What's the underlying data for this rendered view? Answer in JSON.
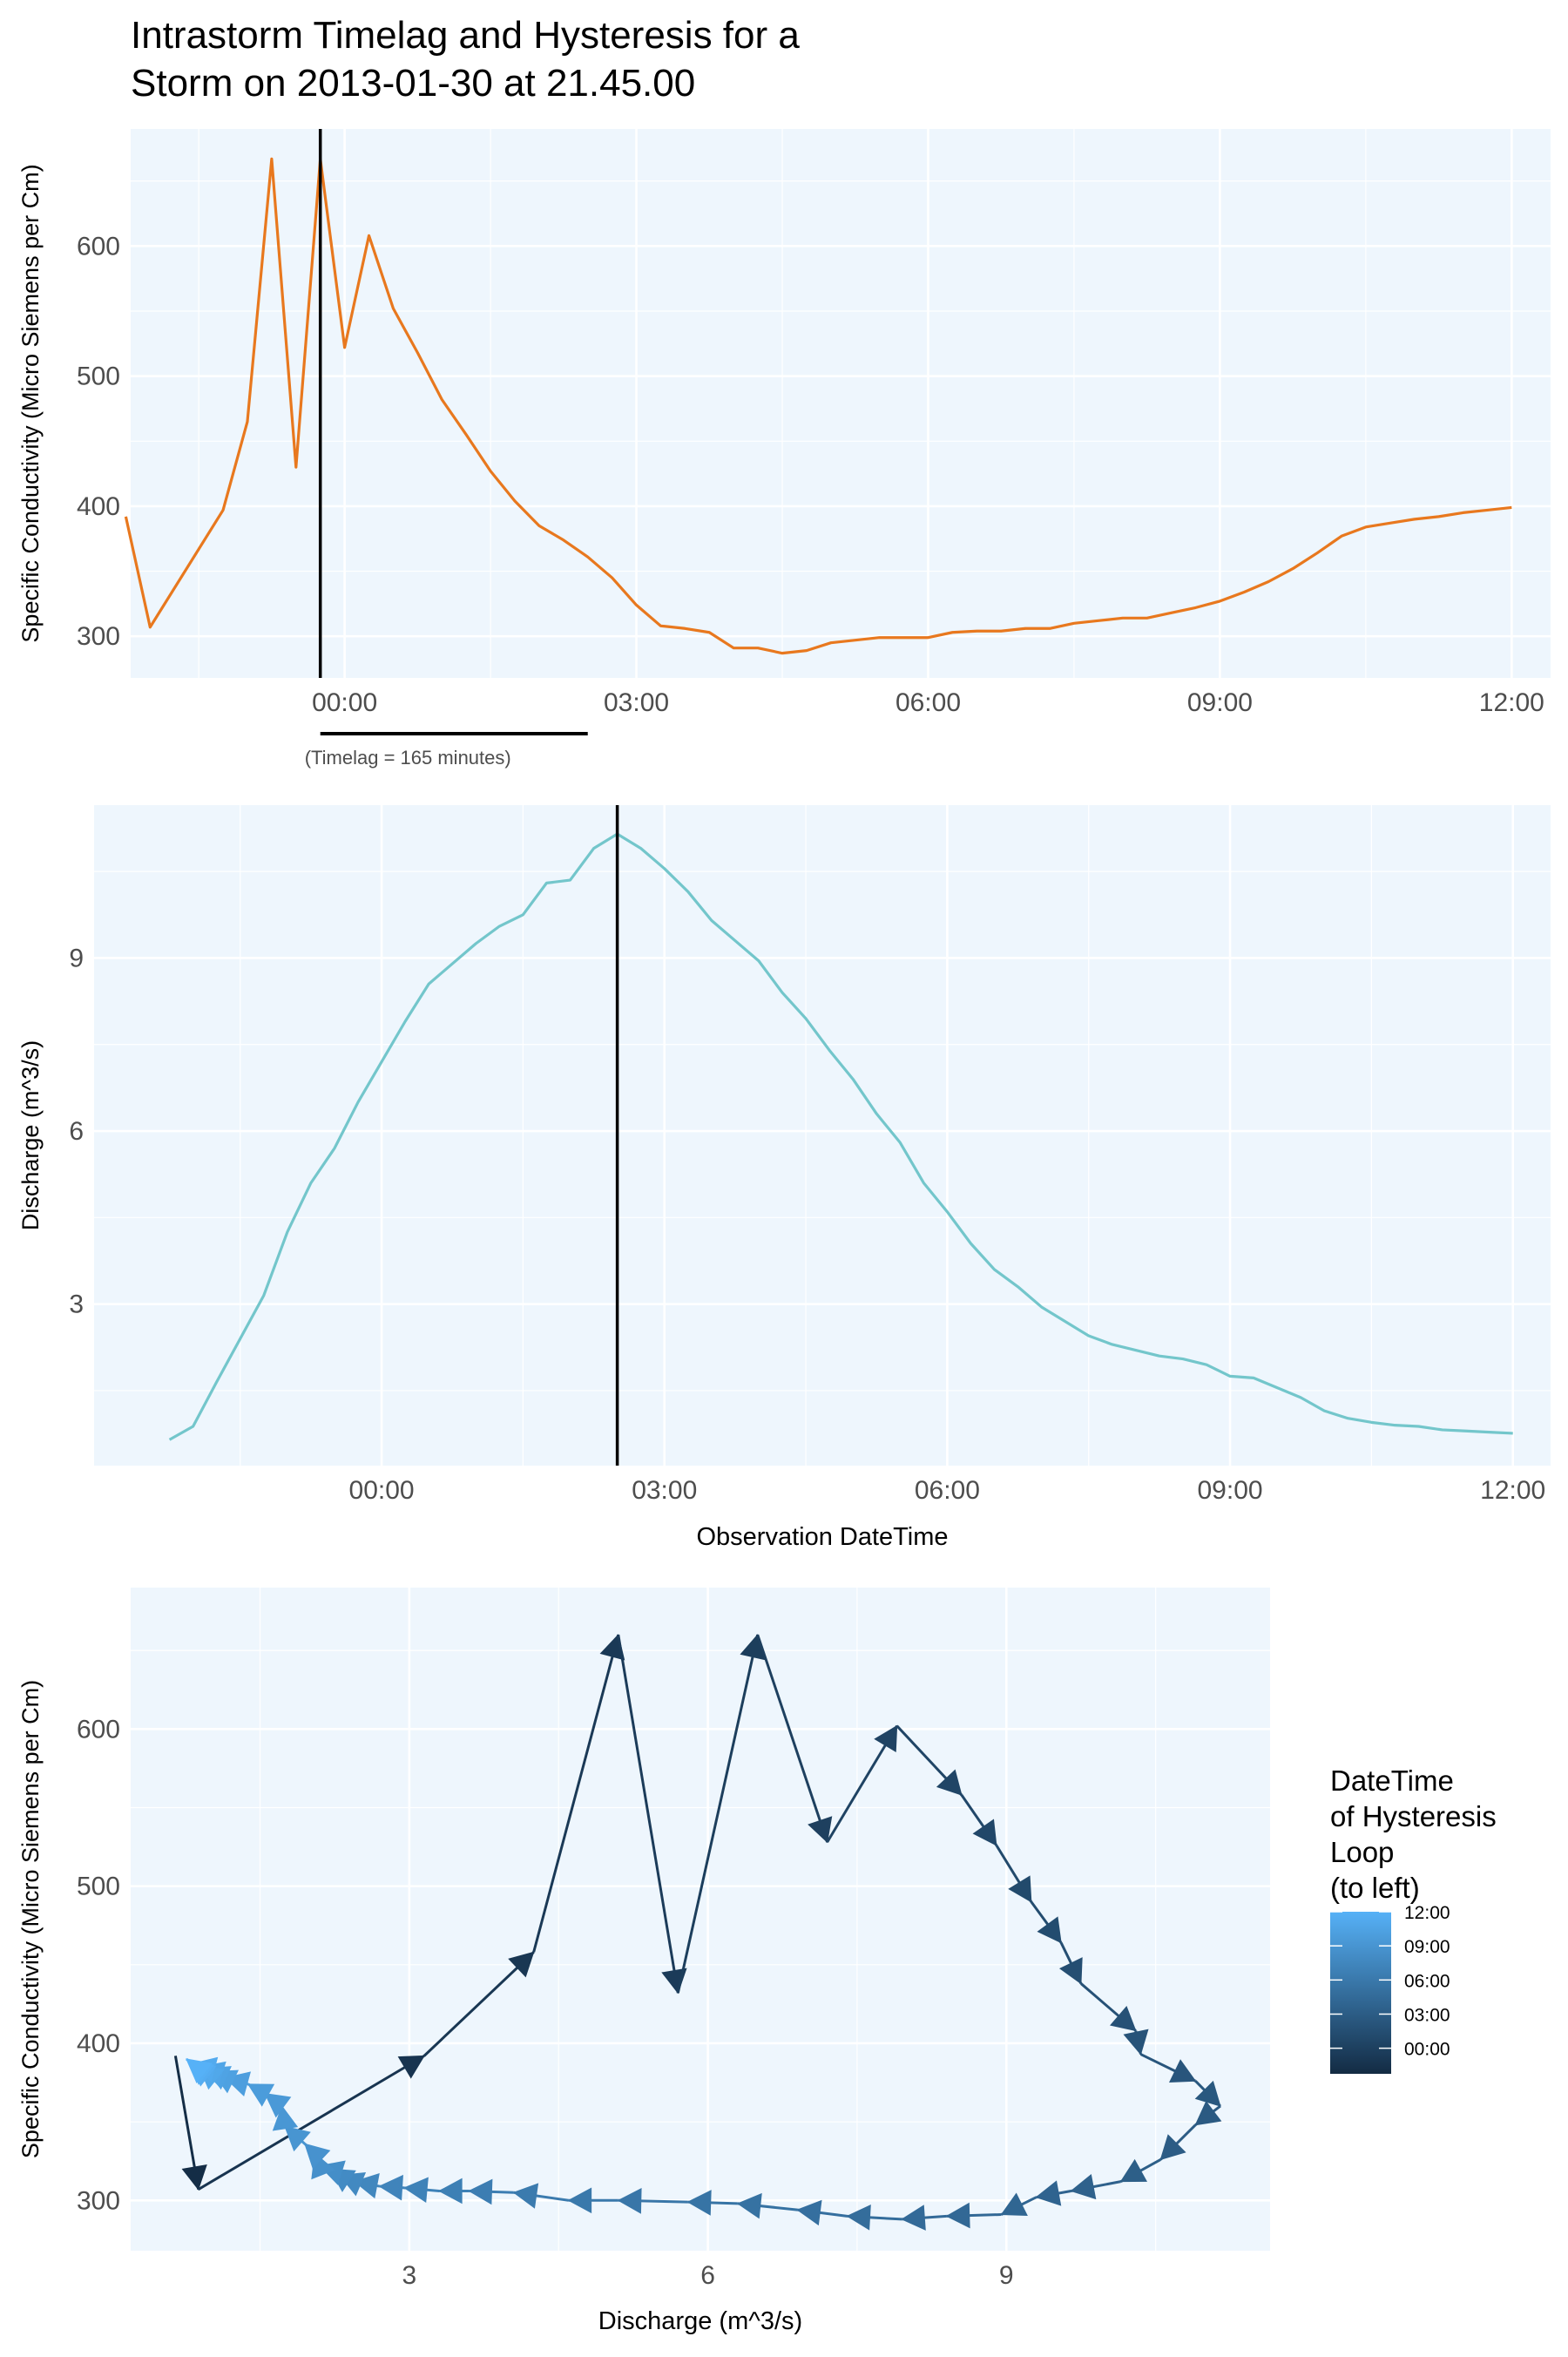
{
  "page": {
    "title_line1": "Intrastorm Timelag and Hysteresis for a",
    "title_line2": "Storm on 2013-01-30 at 21.45.00"
  },
  "colors": {
    "panel_bg": "#eef6fd",
    "grid": "#ffffff",
    "conductivity_line": "#e8781e",
    "discharge_line": "#73c6cb",
    "marker_line": "#000000",
    "gradient_low": "#132b43",
    "gradient_high": "#56b1f7"
  },
  "chart_data": [
    {
      "type": "line",
      "ylabel": "Specific Conductivity (Micro Siemens per Cm)",
      "xlabel": "",
      "x_unit": "hours relative to 2013-01-31 00:00",
      "xlim": [
        -2.2,
        12.4
      ],
      "ylim": [
        268,
        690
      ],
      "x_ticks": [
        0,
        3,
        6,
        9,
        12
      ],
      "x_tick_labels": [
        "00:00",
        "03:00",
        "06:00",
        "09:00",
        "12:00"
      ],
      "y_ticks": [
        300,
        400,
        500,
        600
      ],
      "y_tick_labels": [
        "300",
        "400",
        "500",
        "600"
      ],
      "vline_x": -0.25,
      "timelag_bar": [
        -0.25,
        2.5
      ],
      "timelag_label": "(Timelag = 165 minutes)",
      "series": [
        {
          "x": [
            -2.25,
            -2.0,
            -1.25,
            -1.0,
            -0.75,
            -0.5,
            -0.25,
            0.0,
            0.25,
            0.5,
            0.75,
            1.0,
            1.25,
            1.5,
            1.75,
            2.0,
            2.25,
            2.5,
            2.75,
            3.0,
            3.25,
            3.5,
            3.75,
            4.0,
            4.25,
            4.5,
            4.75,
            5.0,
            5.25,
            5.5,
            5.75,
            6.0,
            6.25,
            6.5,
            6.75,
            7.0,
            7.25,
            7.5,
            7.75,
            8.0,
            8.25,
            8.5,
            8.75,
            9.0,
            9.25,
            9.5,
            9.75,
            10.0,
            10.25,
            10.5,
            10.75,
            11.0,
            11.25,
            11.5,
            11.75,
            12.0
          ],
          "values": [
            392,
            307,
            397,
            465,
            667,
            430,
            667,
            522,
            608,
            552,
            518,
            482,
            455,
            427,
            404,
            385,
            374,
            361,
            345,
            324,
            308,
            306,
            303,
            291,
            291,
            287,
            289,
            295,
            297,
            299,
            299,
            299,
            303,
            304,
            304,
            306,
            306,
            310,
            312,
            314,
            314,
            318,
            322,
            327,
            334,
            342,
            352,
            364,
            377,
            384,
            387,
            390,
            392,
            395,
            397,
            399
          ]
        }
      ]
    },
    {
      "type": "line",
      "ylabel": "Discharge (m^3/s)",
      "xlabel": "Observation DateTime",
      "x_unit": "hours relative to 2013-01-31 00:00",
      "xlim": [
        -3.05,
        12.4
      ],
      "ylim": [
        0.2,
        11.65
      ],
      "x_ticks": [
        0,
        3,
        6,
        9,
        12
      ],
      "x_tick_labels": [
        "00:00",
        "03:00",
        "06:00",
        "09:00",
        "12:00"
      ],
      "y_ticks": [
        3,
        6,
        9
      ],
      "y_tick_labels": [
        "3",
        "6",
        "9"
      ],
      "vline_x": 2.5,
      "series": [
        {
          "x": [
            -2.25,
            -2.0,
            -1.75,
            -1.5,
            -1.25,
            -1.0,
            -0.75,
            -0.5,
            -0.25,
            0.0,
            0.25,
            0.5,
            0.75,
            1.0,
            1.25,
            1.5,
            1.75,
            2.0,
            2.25,
            2.5,
            2.75,
            3.0,
            3.25,
            3.5,
            3.75,
            4.0,
            4.25,
            4.5,
            4.75,
            5.0,
            5.25,
            5.5,
            5.75,
            6.0,
            6.25,
            6.5,
            6.75,
            7.0,
            7.25,
            7.5,
            7.75,
            8.0,
            8.25,
            8.5,
            8.75,
            9.0,
            9.25,
            9.5,
            9.75,
            10.0,
            10.25,
            10.5,
            10.75,
            11.0,
            11.25,
            11.5,
            11.75,
            12.0
          ],
          "values": [
            0.65,
            0.88,
            1.65,
            2.4,
            3.15,
            4.25,
            5.1,
            5.7,
            6.5,
            7.2,
            7.9,
            8.55,
            8.9,
            9.25,
            9.55,
            9.75,
            10.3,
            10.35,
            10.9,
            11.15,
            10.9,
            10.55,
            10.15,
            9.65,
            9.3,
            8.95,
            8.4,
            7.95,
            7.4,
            6.9,
            6.3,
            5.8,
            5.1,
            4.6,
            4.05,
            3.6,
            3.3,
            2.95,
            2.7,
            2.45,
            2.3,
            2.2,
            2.1,
            2.05,
            1.95,
            1.75,
            1.72,
            1.55,
            1.38,
            1.15,
            1.02,
            0.95,
            0.9,
            0.88,
            0.82,
            0.8,
            0.78,
            0.76
          ]
        }
      ]
    },
    {
      "type": "scatter",
      "ylabel": "Specific Conductivity (Micro Siemens per Cm)",
      "xlabel": "Discharge (m^3/s)",
      "xlim": [
        0.2,
        11.65
      ],
      "ylim": [
        268,
        690
      ],
      "x_ticks": [
        3,
        6,
        9
      ],
      "x_tick_labels": [
        "3",
        "6",
        "9"
      ],
      "y_ticks": [
        300,
        400,
        500,
        600
      ],
      "y_tick_labels": [
        "300",
        "400",
        "500",
        "600"
      ],
      "legend": {
        "title_lines": [
          "DateTime",
          "of Hysteresis",
          "Loop",
          "(to left)"
        ],
        "placement": "right",
        "tick_labels": [
          "12:00",
          "09:00",
          "06:00",
          "03:00",
          "00:00"
        ],
        "tick_hours": [
          12,
          9,
          6,
          3,
          0
        ],
        "range_hours": [
          -2.25,
          12.0
        ]
      },
      "series": [
        {
          "description_source": "path of discharge (x) vs conductivity (y) over time",
          "hours": [
            -2.25,
            -2.0,
            -1.25,
            -1.0,
            -0.75,
            -0.5,
            -0.25,
            0.0,
            0.25,
            0.5,
            0.75,
            1.0,
            1.25,
            1.5,
            1.75,
            2.0,
            2.25,
            2.5,
            2.75,
            3.0,
            3.25,
            3.5,
            3.75,
            4.0,
            4.25,
            4.5,
            4.75,
            5.0,
            5.25,
            5.5,
            5.75,
            6.0,
            6.25,
            6.5,
            6.75,
            7.0,
            7.25,
            7.5,
            7.75,
            8.0,
            8.25,
            8.5,
            8.75,
            9.0,
            9.25,
            9.5,
            9.75,
            10.0,
            10.25,
            10.5,
            10.75,
            11.0,
            11.25,
            11.5,
            11.75,
            12.0
          ],
          "x": [
            0.65,
            0.88,
            3.15,
            4.25,
            5.1,
            5.7,
            6.5,
            7.2,
            7.9,
            8.55,
            8.9,
            9.25,
            9.55,
            9.75,
            10.3,
            10.35,
            10.9,
            11.15,
            10.9,
            10.55,
            10.15,
            9.65,
            9.3,
            8.95,
            8.4,
            7.95,
            7.4,
            6.9,
            6.3,
            5.8,
            5.1,
            4.6,
            4.05,
            3.6,
            3.3,
            2.95,
            2.7,
            2.45,
            2.3,
            2.2,
            2.1,
            2.05,
            1.95,
            1.75,
            1.72,
            1.55,
            1.38,
            1.15,
            1.02,
            0.95,
            0.9,
            0.88,
            0.82,
            0.8,
            0.78,
            0.76
          ],
          "values": [
            392,
            307,
            392,
            458,
            660,
            432,
            660,
            528,
            602,
            558,
            526,
            490,
            464,
            438,
            408,
            393,
            376,
            360,
            348,
            326,
            312,
            306,
            302,
            291,
            290,
            288,
            290,
            294,
            298,
            299,
            300,
            300,
            305,
            306,
            306,
            308,
            309,
            312,
            316,
            320,
            322,
            330,
            336,
            347,
            360,
            368,
            374,
            378,
            382,
            384,
            385,
            386,
            387,
            388,
            389,
            390
          ]
        }
      ]
    }
  ]
}
